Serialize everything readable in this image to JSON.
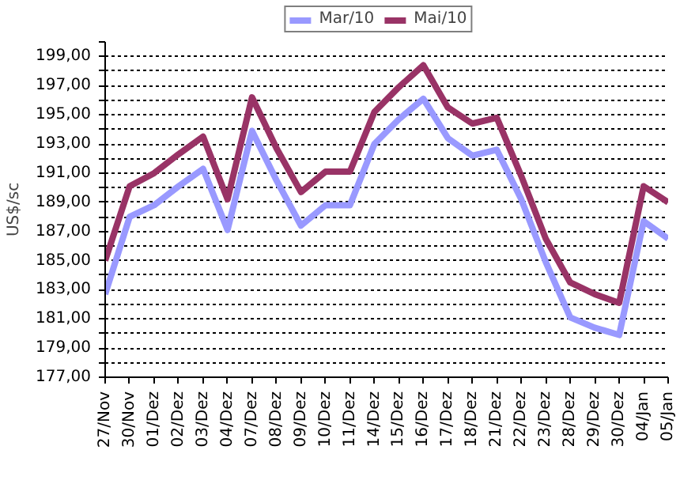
{
  "chart_data": {
    "type": "line",
    "ylabel": "US$/sc",
    "categories": [
      "27/Nov",
      "30/Nov",
      "01/Dez",
      "02/Dez",
      "03/Dez",
      "04/Dez",
      "07/Dez",
      "08/Dez",
      "09/Dez",
      "10/Dez",
      "11/Dez",
      "14/Dez",
      "15/Dez",
      "16/Dez",
      "17/Dez",
      "18/Dez",
      "21/Dez",
      "22/Dez",
      "23/Dez",
      "28/Dez",
      "29/Dez",
      "30/Dez",
      "04/Jan",
      "05/Jan"
    ],
    "series": [
      {
        "name": "Mar/10",
        "color": "#9999ff",
        "values": [
          182.7,
          188.0,
          188.8,
          190.1,
          191.3,
          187.1,
          193.9,
          190.5,
          187.4,
          188.8,
          188.8,
          193.0,
          194.7,
          196.1,
          193.4,
          192.2,
          192.6,
          189.2,
          184.9,
          181.1,
          180.4,
          179.9,
          187.7,
          186.5
        ]
      },
      {
        "name": "Mai/10",
        "color": "#993366",
        "values": [
          185.0,
          190.1,
          191.0,
          192.3,
          193.5,
          189.2,
          196.2,
          192.7,
          189.7,
          191.1,
          191.1,
          195.2,
          196.9,
          198.4,
          195.5,
          194.4,
          194.8,
          190.8,
          186.5,
          183.5,
          182.7,
          182.1,
          190.1,
          189.0
        ]
      }
    ],
    "ylim": [
      177,
      200
    ],
    "yticks": [
      {
        "value": 177,
        "label": "177,00"
      },
      {
        "value": 178,
        "label": null
      },
      {
        "value": 179,
        "label": "179,00"
      },
      {
        "value": 180,
        "label": null
      },
      {
        "value": 181,
        "label": "181,00"
      },
      {
        "value": 182,
        "label": null
      },
      {
        "value": 183,
        "label": "183,00"
      },
      {
        "value": 184,
        "label": null
      },
      {
        "value": 185,
        "label": "185,00"
      },
      {
        "value": 186,
        "label": null
      },
      {
        "value": 187,
        "label": "187,00"
      },
      {
        "value": 188,
        "label": null
      },
      {
        "value": 189,
        "label": "189,00"
      },
      {
        "value": 190,
        "label": null
      },
      {
        "value": 191,
        "label": "191,00"
      },
      {
        "value": 192,
        "label": null
      },
      {
        "value": 193,
        "label": "193,00"
      },
      {
        "value": 194,
        "label": null
      },
      {
        "value": 195,
        "label": "195,00"
      },
      {
        "value": 196,
        "label": null
      },
      {
        "value": 197,
        "label": "197,00"
      },
      {
        "value": 198,
        "label": null
      },
      {
        "value": 199,
        "label": "199,00"
      },
      {
        "value": 200,
        "label": null
      }
    ],
    "grid": "y",
    "legend": "top",
    "line_style": "solid"
  }
}
